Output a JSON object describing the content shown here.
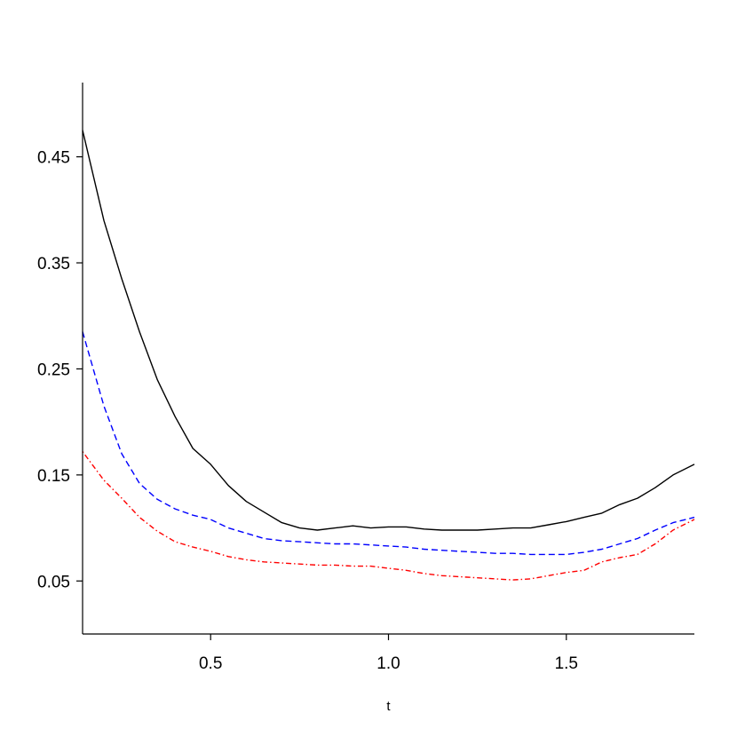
{
  "chart_data": {
    "type": "line",
    "title": "",
    "xlabel": "t",
    "ylabel": "",
    "xlim": [
      0.14,
      1.86
    ],
    "ylim": [
      0.0,
      0.52
    ],
    "grid": false,
    "legend": "none",
    "x_ticks": [
      {
        "value": 0.5,
        "label": "0.5"
      },
      {
        "value": 1.0,
        "label": "1.0"
      },
      {
        "value": 1.5,
        "label": "1.5"
      }
    ],
    "y_ticks": [
      {
        "value": 0.05,
        "label": "0.05"
      },
      {
        "value": 0.15,
        "label": "0.15"
      },
      {
        "value": 0.25,
        "label": "0.25"
      },
      {
        "value": 0.35,
        "label": "0.35"
      },
      {
        "value": 0.45,
        "label": "0.45"
      }
    ],
    "series": [
      {
        "color": "#000000",
        "dash": "solid",
        "x": [
          0.14,
          0.2,
          0.25,
          0.3,
          0.35,
          0.4,
          0.45,
          0.5,
          0.55,
          0.6,
          0.65,
          0.7,
          0.75,
          0.8,
          0.85,
          0.9,
          0.95,
          1.0,
          1.05,
          1.1,
          1.15,
          1.2,
          1.25,
          1.3,
          1.35,
          1.4,
          1.45,
          1.5,
          1.55,
          1.6,
          1.65,
          1.7,
          1.75,
          1.8,
          1.86
        ],
        "y": [
          0.475,
          0.39,
          0.335,
          0.285,
          0.24,
          0.205,
          0.175,
          0.16,
          0.14,
          0.125,
          0.115,
          0.105,
          0.1,
          0.098,
          0.1,
          0.102,
          0.1,
          0.101,
          0.101,
          0.099,
          0.098,
          0.098,
          0.098,
          0.099,
          0.1,
          0.1,
          0.103,
          0.106,
          0.11,
          0.114,
          0.122,
          0.128,
          0.138,
          0.15,
          0.16
        ]
      },
      {
        "color": "#0000ff",
        "dash": "dashed",
        "x": [
          0.14,
          0.2,
          0.25,
          0.3,
          0.35,
          0.4,
          0.45,
          0.5,
          0.55,
          0.6,
          0.65,
          0.7,
          0.75,
          0.8,
          0.85,
          0.9,
          0.95,
          1.0,
          1.05,
          1.1,
          1.15,
          1.2,
          1.25,
          1.3,
          1.35,
          1.4,
          1.45,
          1.5,
          1.55,
          1.6,
          1.65,
          1.7,
          1.75,
          1.8,
          1.86
        ],
        "y": [
          0.285,
          0.215,
          0.17,
          0.142,
          0.127,
          0.118,
          0.112,
          0.108,
          0.1,
          0.095,
          0.09,
          0.088,
          0.087,
          0.086,
          0.085,
          0.085,
          0.084,
          0.083,
          0.082,
          0.08,
          0.079,
          0.078,
          0.077,
          0.076,
          0.076,
          0.075,
          0.075,
          0.075,
          0.077,
          0.08,
          0.085,
          0.09,
          0.098,
          0.105,
          0.11
        ]
      },
      {
        "color": "#ff0000",
        "dash": "dotdash",
        "x": [
          0.14,
          0.2,
          0.25,
          0.3,
          0.35,
          0.4,
          0.45,
          0.5,
          0.55,
          0.6,
          0.65,
          0.7,
          0.75,
          0.8,
          0.85,
          0.9,
          0.95,
          1.0,
          1.05,
          1.1,
          1.15,
          1.2,
          1.25,
          1.3,
          1.35,
          1.4,
          1.45,
          1.5,
          1.55,
          1.6,
          1.65,
          1.7,
          1.75,
          1.8,
          1.86
        ],
        "y": [
          0.172,
          0.145,
          0.128,
          0.11,
          0.097,
          0.087,
          0.082,
          0.078,
          0.073,
          0.07,
          0.068,
          0.067,
          0.066,
          0.065,
          0.065,
          0.064,
          0.064,
          0.062,
          0.06,
          0.057,
          0.055,
          0.054,
          0.053,
          0.052,
          0.051,
          0.052,
          0.055,
          0.058,
          0.06,
          0.068,
          0.072,
          0.075,
          0.085,
          0.098,
          0.108
        ]
      }
    ]
  }
}
